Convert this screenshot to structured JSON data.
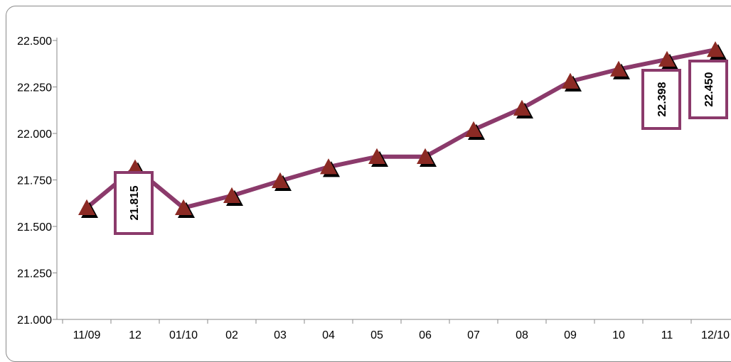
{
  "chart_data": {
    "type": "line",
    "title": "",
    "xlabel": "",
    "ylabel": "",
    "categories": [
      "11/09",
      "12",
      "01/10",
      "02",
      "03",
      "04",
      "05",
      "06",
      "07",
      "08",
      "09",
      "10",
      "11",
      "12/10"
    ],
    "series": [
      {
        "values": [
          21.6,
          21.815,
          21.6,
          21.665,
          21.745,
          21.82,
          21.875,
          21.875,
          22.02,
          22.135,
          22.28,
          22.345,
          22.398,
          22.45
        ]
      }
    ],
    "ylim": [
      21.0,
      22.5
    ],
    "yticks": [
      21.0,
      21.25,
      21.5,
      21.75,
      22.0,
      22.25,
      22.5
    ],
    "ytick_labels": [
      "21.000",
      "21.250",
      "21.500",
      "21.750",
      "22.000",
      "22.250",
      "22.500"
    ],
    "data_labels": [
      {
        "index": 1,
        "text": "21.815"
      },
      {
        "index": 12,
        "text": "22.398"
      },
      {
        "index": 13,
        "text": "22.450"
      }
    ],
    "colors": {
      "line": "#8b3a6b",
      "marker": "#8b2a24",
      "marker_shadow": "#000000",
      "label_box": "#8b3a6b"
    },
    "marker": "triangle",
    "grid": false,
    "legend": "none"
  }
}
